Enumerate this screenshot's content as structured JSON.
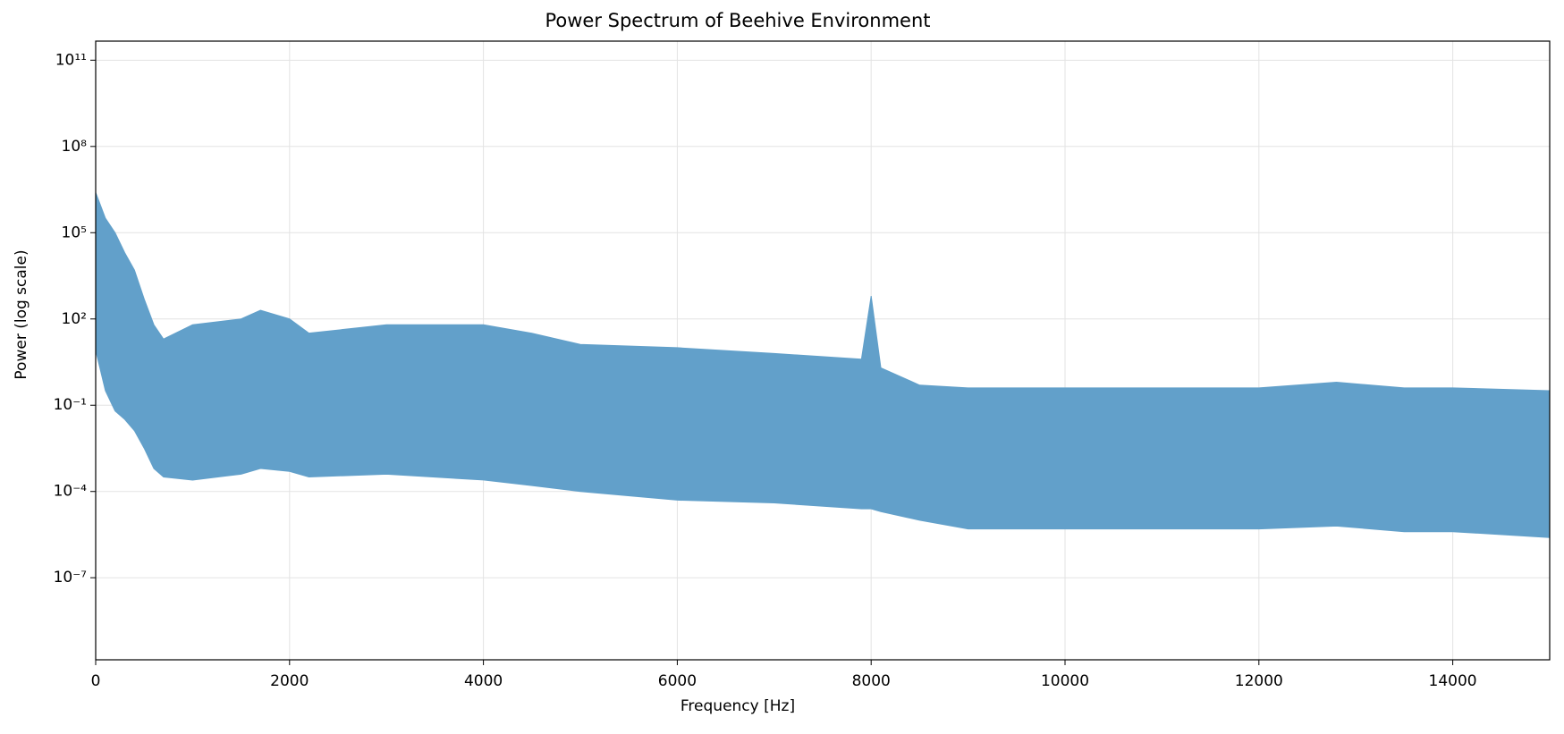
{
  "chart_data": {
    "type": "band",
    "title": "Power Spectrum of Beehive Environment",
    "x_label": "Frequency [Hz]",
    "y_label": "Power (log scale)",
    "x": [
      0,
      100,
      200,
      300,
      400,
      500,
      600,
      700,
      1000,
      1500,
      1700,
      2000,
      2200,
      3000,
      4000,
      4500,
      5000,
      6000,
      7000,
      7900,
      8000,
      8100,
      8500,
      9000,
      10000,
      11000,
      12000,
      12800,
      13500,
      14000,
      15000
    ],
    "values": [
      2500000.0,
      320000.0,
      100000.0,
      20000.0,
      5000.0,
      500,
      63,
      20,
      63,
      100,
      200,
      100,
      32,
      63,
      63,
      32,
      13,
      10,
      6.3,
      4,
      630,
      2,
      0.5,
      0.4,
      0.4,
      0.4,
      0.4,
      0.63,
      0.4,
      0.4,
      0.32
    ],
    "lower": [
      8,
      0.32,
      0.063,
      0.032,
      0.013,
      0.0032,
      0.00063,
      0.00032,
      0.00025,
      0.0004,
      0.00063,
      0.0005,
      0.00032,
      0.0004,
      0.00025,
      0.00016,
      0.0001,
      5e-05,
      4e-05,
      2.5e-05,
      2.5e-05,
      2e-05,
      1e-05,
      5e-06,
      5e-06,
      5e-06,
      5e-06,
      6.3e-06,
      4e-06,
      4e-06,
      2.5e-06
    ],
    "color": "#62a0ca",
    "xlim": [
      0,
      15000
    ],
    "xticks": [
      0,
      2000,
      4000,
      6000,
      8000,
      10000,
      12000,
      14000
    ],
    "ylim": [
      1.4e-10,
      460000000000.0
    ],
    "log_y": true,
    "yticks": [
      {
        "value": 1e-07,
        "label": "10⁻⁷"
      },
      {
        "value": 0.0001,
        "label": "10⁻⁴"
      },
      {
        "value": 0.1,
        "label": "10⁻¹"
      },
      {
        "value": 100,
        "label": "10²"
      },
      {
        "value": 100000.0,
        "label": "10⁵"
      },
      {
        "value": 100000000.0,
        "label": "10⁸"
      },
      {
        "value": 100000000000.0,
        "label": "10¹¹"
      }
    ],
    "grid": true
  }
}
